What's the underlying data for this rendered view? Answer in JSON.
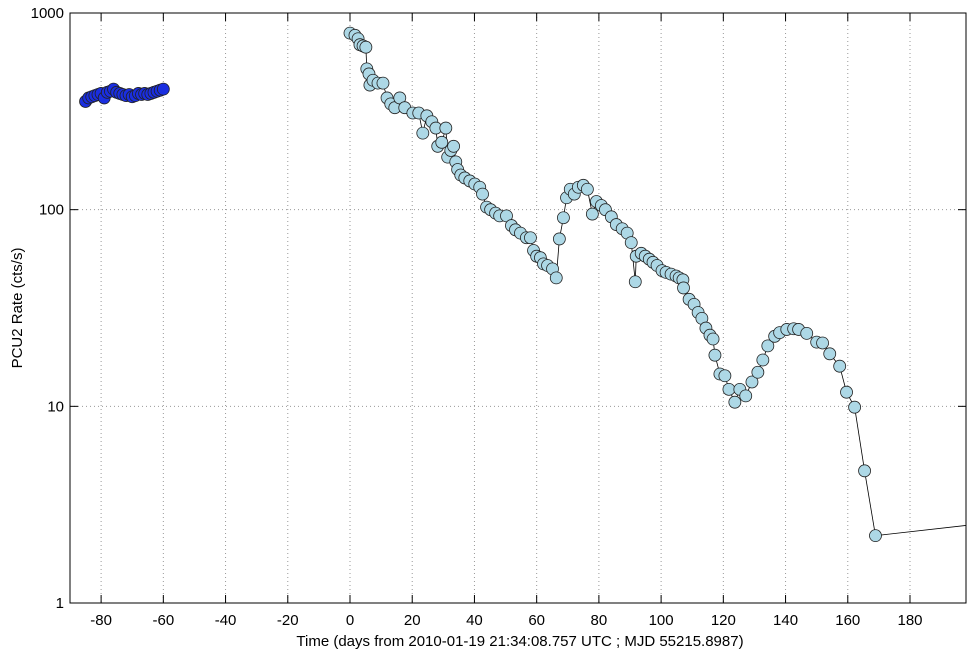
{
  "chart_data": {
    "type": "scatter",
    "xlabel": "Time (days from 2010-01-19 21:34:08.757 UTC ; MJD 55215.8987)",
    "ylabel": "PCU2 Rate (cts/s)",
    "xlim": [
      -90,
      198
    ],
    "ylim": [
      1,
      1000
    ],
    "ylog": true,
    "grid": true,
    "xticks": [
      -80,
      -60,
      -40,
      -20,
      0,
      20,
      40,
      60,
      80,
      100,
      120,
      140,
      160,
      180
    ],
    "yticks": [
      1,
      10,
      100,
      1000
    ],
    "series": [
      {
        "color": "#1a2ee0",
        "line": false,
        "x": [
          -85,
          -84,
          -83,
          -82,
          -81,
          -80,
          -79,
          -78,
          -77,
          -76,
          -75,
          -74,
          -73,
          -72,
          -71,
          -70,
          -69,
          -68,
          -67,
          -66,
          -65,
          -64,
          -63,
          -62,
          -61,
          -60
        ],
        "values": [
          355,
          370,
          375,
          380,
          385,
          390,
          370,
          395,
          400,
          410,
          395,
          390,
          385,
          380,
          385,
          375,
          380,
          390,
          385,
          390,
          385,
          390,
          395,
          400,
          405,
          410
        ]
      },
      {
        "color": "#add8e6",
        "line": true,
        "x": [
          0,
          1.6,
          2.6,
          3.2,
          4.2,
          5.1,
          5.4,
          6.1,
          6.4,
          7.4,
          9,
          10.6,
          11.9,
          13.1,
          14.4,
          16,
          17.6,
          20.2,
          22.1,
          23.4,
          24.7,
          26.3,
          27.6,
          28.2,
          29.5,
          30.8,
          31.4,
          32.4,
          33.3,
          34,
          34.6,
          35.6,
          36.9,
          38.5,
          40.1,
          41.7,
          42.6,
          43.9,
          45.2,
          46.8,
          48.1,
          50.3,
          51.9,
          53.2,
          54.8,
          56.7,
          58,
          59,
          60,
          61.2,
          62.2,
          63.5,
          65.1,
          66.3,
          67.3,
          68.6,
          69.6,
          70.8,
          72.1,
          73.4,
          75,
          76.3,
          77.9,
          79.2,
          80.8,
          82.1,
          84,
          85.6,
          87.5,
          89.1,
          90.4,
          91.7,
          92,
          93.6,
          94.9,
          96.2,
          97.4,
          98.7,
          100.3,
          101.6,
          103.2,
          104.8,
          105.8,
          107,
          107.2,
          109,
          110.6,
          111.9,
          113.1,
          114.4,
          115.7,
          116.7,
          117.3,
          118.9,
          120.5,
          121.8,
          123.7,
          125.3,
          127.2,
          129.2,
          131.1,
          132.7,
          134.3,
          136.5,
          138.1,
          140.4,
          142.6,
          144.2,
          146.8,
          150,
          151.9,
          154.2,
          157.4,
          159.6,
          162.2,
          165.4,
          168.9,
          200
        ],
        "values": [
          790,
          770,
          740,
          690,
          680,
          670,
          520,
          490,
          430,
          455,
          440,
          440,
          370,
          345,
          330,
          370,
          330,
          310,
          310,
          245,
          300,
          280,
          260,
          210,
          220,
          260,
          185,
          200,
          210,
          175,
          160,
          150,
          145,
          140,
          135,
          130,
          120,
          103,
          100,
          96,
          93,
          93,
          83,
          79,
          76,
          72,
          72,
          62,
          58,
          57,
          53,
          52,
          50,
          45,
          71,
          91,
          115,
          127,
          120,
          130,
          133,
          127,
          95,
          110,
          105,
          100,
          92,
          84,
          80,
          76,
          68,
          43,
          58,
          60,
          58,
          56,
          54,
          52,
          49,
          48,
          47,
          46,
          45,
          44,
          40,
          35,
          33,
          30,
          28,
          25,
          23,
          22,
          18.2,
          14.6,
          14.3,
          12.2,
          10.5,
          12.2,
          11.3,
          13.3,
          14.9,
          17.2,
          20.3,
          22.7,
          23.7,
          24.6,
          24.8,
          24.6,
          23.5,
          21.2,
          21,
          18.5,
          16,
          11.8,
          9.9,
          4.7,
          2.2,
          2.5
        ]
      }
    ]
  }
}
